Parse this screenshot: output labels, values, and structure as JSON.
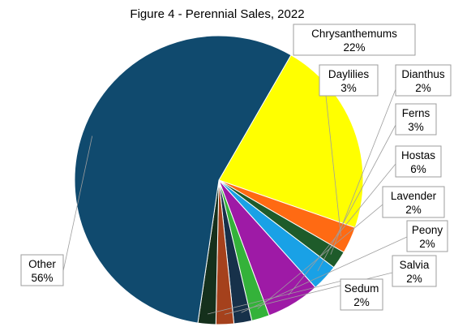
{
  "chart_data": {
    "type": "pie",
    "title": "Figure 4 - Perennial Sales, 2022",
    "slices": [
      {
        "name": "Chrysanthemums",
        "value": 22,
        "label": "22%",
        "color": "#ffff00"
      },
      {
        "name": "Daylilies",
        "value": 3,
        "label": "3%",
        "color": "#ff6a13"
      },
      {
        "name": "Dianthus",
        "value": 2,
        "label": "2%",
        "color": "#1e5b2a"
      },
      {
        "name": "Ferns",
        "value": 3,
        "label": "3%",
        "color": "#19a1e6"
      },
      {
        "name": "Hostas",
        "value": 6,
        "label": "6%",
        "color": "#9e1aa6"
      },
      {
        "name": "Lavender",
        "value": 2,
        "label": "2%",
        "color": "#34b23a"
      },
      {
        "name": "Peony",
        "value": 2,
        "label": "2%",
        "color": "#17314a"
      },
      {
        "name": "Salvia",
        "value": 2,
        "label": "2%",
        "color": "#a5411c"
      },
      {
        "name": "Sedum",
        "value": 2,
        "label": "2%",
        "color": "#15301c"
      },
      {
        "name": "Other",
        "value": 56,
        "label": "56%",
        "color": "#104a6e"
      }
    ],
    "start_angle_deg": -60,
    "direction": "clockwise"
  }
}
